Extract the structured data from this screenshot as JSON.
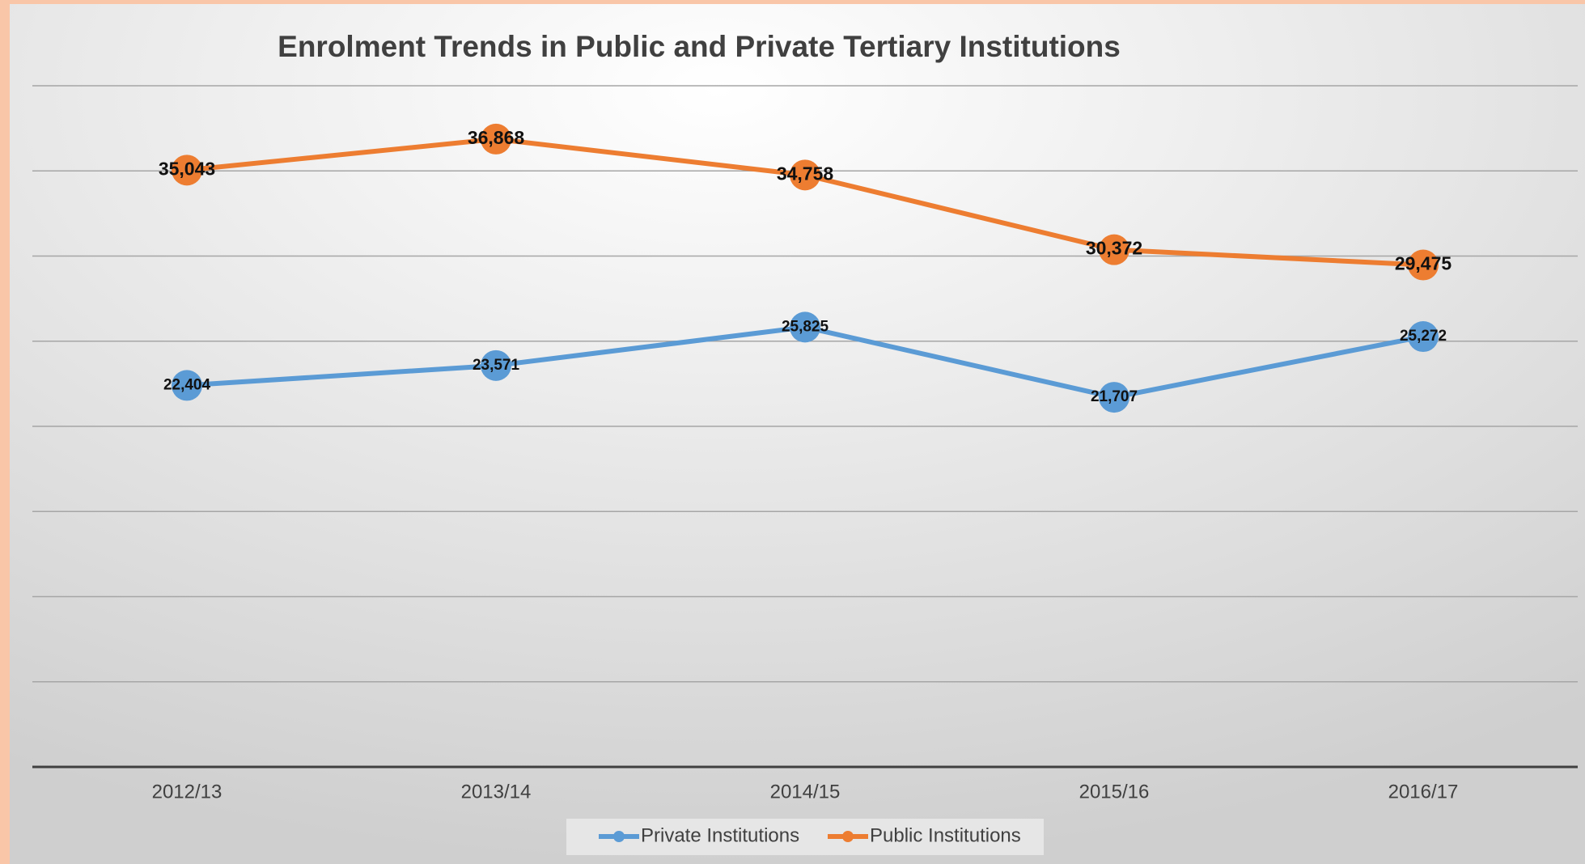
{
  "chart_data": {
    "type": "line",
    "title": "Enrolment Trends in Public and Private Tertiary Institutions",
    "categories": [
      "2012/13",
      "2013/14",
      "2014/15",
      "2015/16",
      "2016/17"
    ],
    "series": [
      {
        "name": "Private Institutions",
        "color": "#5b9bd5",
        "values": [
          22404,
          23571,
          25825,
          21707,
          25272
        ],
        "value_labels": [
          "22,404",
          "23,571",
          "25,825",
          "21,707",
          "25,272"
        ]
      },
      {
        "name": "Public Institutions",
        "color": "#ed7d31",
        "values": [
          35043,
          36868,
          34758,
          30372,
          29475
        ],
        "value_labels": [
          "35,043",
          "36,868",
          "34,758",
          "30,372",
          "29,475"
        ]
      }
    ],
    "ylim": [
      0,
      40000
    ],
    "yticks": [
      0,
      5000,
      10000,
      15000,
      20000,
      25000,
      30000,
      35000,
      40000
    ],
    "grid": true,
    "legend": "bottom"
  }
}
